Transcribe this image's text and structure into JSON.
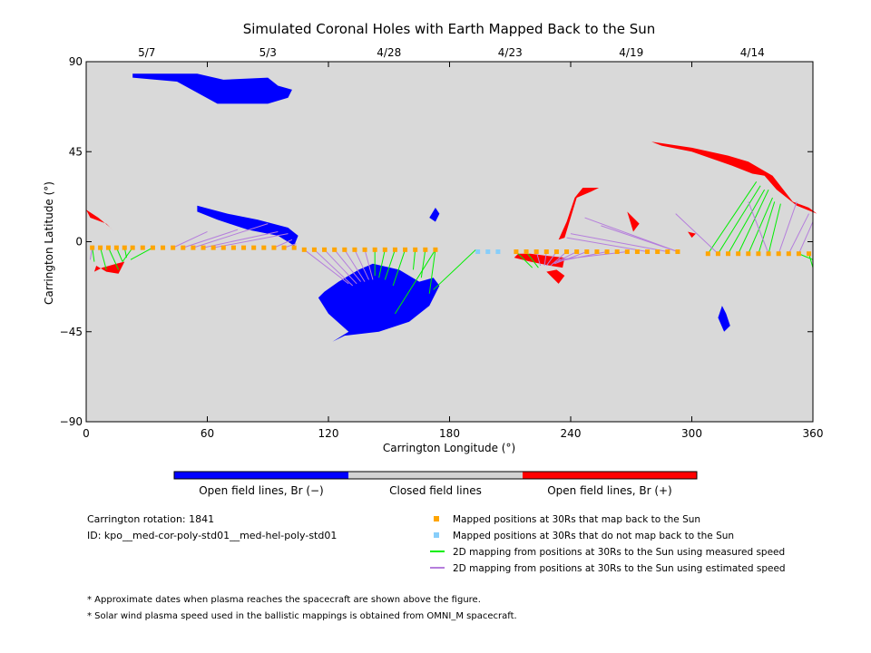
{
  "chart_data": {
    "type": "scatter",
    "title": "Simulated Coronal Holes with Earth Mapped Back to the Sun",
    "xlabel": "Carrington Longitude (°)",
    "ylabel": "Carrington Latitude (°)",
    "xlim": [
      0,
      360
    ],
    "ylim": [
      -90,
      90
    ],
    "x_ticks": [
      0,
      60,
      120,
      180,
      240,
      300,
      360
    ],
    "y_ticks": [
      90,
      45,
      0,
      -45,
      -90
    ],
    "y_tick_labels": [
      "90",
      "45",
      "0",
      "−45",
      "−90"
    ],
    "date_ticks": [
      {
        "label": "5/7",
        "lon": 30
      },
      {
        "label": "5/3",
        "lon": 90
      },
      {
        "label": "4/28",
        "lon": 150
      },
      {
        "label": "4/23",
        "lon": 210
      },
      {
        "label": "4/19",
        "lon": 270
      },
      {
        "label": "4/14",
        "lon": 330
      }
    ],
    "grid": false,
    "colors": {
      "background": "#d9d9d9",
      "open_negative": "#0000ff",
      "open_positive": "#ff0000",
      "closed": "#d3d3d3",
      "mapped": "#ffa500",
      "unmapped": "#87cefa",
      "measured": "#00ee00",
      "estimated": "#b57edc"
    },
    "coronal_holes_negative": [
      [
        [
          23,
          84
        ],
        [
          55,
          84
        ],
        [
          68,
          81
        ],
        [
          90,
          82
        ],
        [
          95,
          78
        ],
        [
          102,
          76
        ],
        [
          100,
          72
        ],
        [
          90,
          69
        ],
        [
          65,
          69
        ],
        [
          45,
          80
        ],
        [
          23,
          82
        ]
      ],
      [
        [
          55,
          18
        ],
        [
          70,
          14
        ],
        [
          85,
          11
        ],
        [
          100,
          7
        ],
        [
          105,
          3
        ],
        [
          103,
          -2
        ],
        [
          95,
          3
        ],
        [
          80,
          6
        ],
        [
          65,
          11
        ],
        [
          55,
          15
        ]
      ],
      [
        [
          115,
          -28
        ],
        [
          120,
          -36
        ],
        [
          130,
          -45
        ],
        [
          122,
          -50
        ],
        [
          128,
          -47
        ],
        [
          145,
          -45
        ],
        [
          160,
          -40
        ],
        [
          170,
          -32
        ],
        [
          175,
          -22
        ],
        [
          172,
          -18
        ],
        [
          165,
          -20
        ],
        [
          155,
          -14
        ],
        [
          142,
          -11
        ],
        [
          135,
          -14
        ],
        [
          125,
          -20
        ],
        [
          118,
          -25
        ]
      ],
      [
        [
          173,
          17
        ],
        [
          175,
          14
        ],
        [
          173,
          10
        ],
        [
          170,
          12
        ]
      ],
      [
        [
          315,
          -32
        ],
        [
          317,
          -36
        ],
        [
          319,
          -42
        ],
        [
          316,
          -45
        ],
        [
          313,
          -38
        ]
      ]
    ],
    "coronal_holes_positive": [
      [
        [
          0,
          16
        ],
        [
          6,
          12
        ],
        [
          12,
          7
        ],
        [
          16,
          3
        ],
        [
          10,
          9
        ],
        [
          2,
          12
        ]
      ],
      [
        [
          5,
          -12
        ],
        [
          10,
          -15
        ],
        [
          16,
          -16
        ],
        [
          19,
          -10
        ],
        [
          15,
          -11
        ],
        [
          8,
          -13
        ],
        [
          4,
          -15
        ]
      ],
      [
        [
          212,
          -8
        ],
        [
          220,
          -10
        ],
        [
          230,
          -12
        ],
        [
          236,
          -13
        ],
        [
          237,
          -8
        ],
        [
          228,
          -7
        ],
        [
          220,
          -6
        ],
        [
          214,
          -6
        ]
      ],
      [
        [
          228,
          -15
        ],
        [
          234,
          -21
        ],
        [
          237,
          -17
        ],
        [
          233,
          -14
        ]
      ],
      [
        [
          234,
          1
        ],
        [
          238,
          10
        ],
        [
          242,
          22
        ],
        [
          246,
          27
        ],
        [
          254,
          27
        ],
        [
          250,
          25
        ],
        [
          243,
          22
        ],
        [
          240,
          12
        ],
        [
          237,
          2
        ]
      ],
      [
        [
          268,
          15
        ],
        [
          274,
          9
        ],
        [
          271,
          5
        ]
      ],
      [
        [
          298,
          5
        ],
        [
          300,
          2
        ],
        [
          302,
          4
        ]
      ],
      [
        [
          280,
          50
        ],
        [
          300,
          47
        ],
        [
          318,
          43
        ],
        [
          328,
          40
        ],
        [
          340,
          33
        ],
        [
          350,
          20
        ],
        [
          358,
          17
        ],
        [
          362,
          14
        ],
        [
          352,
          18
        ],
        [
          342,
          26
        ],
        [
          336,
          33
        ],
        [
          330,
          34
        ],
        [
          320,
          38
        ],
        [
          300,
          45
        ],
        [
          285,
          48
        ]
      ]
    ],
    "mapped_lons": [
      3,
      7,
      11,
      15,
      19,
      23,
      28,
      33,
      38,
      43,
      48,
      53,
      58,
      63,
      68,
      73,
      78,
      83,
      88,
      93,
      98,
      103,
      108,
      113,
      118,
      123,
      128,
      133,
      138,
      143,
      148,
      153,
      158,
      163,
      168,
      173,
      213,
      218,
      223,
      228,
      233,
      238,
      243,
      248,
      253,
      258,
      263,
      268,
      273,
      278,
      283,
      288,
      293,
      308,
      313,
      318,
      323,
      328,
      333,
      338,
      343,
      348,
      353,
      358
    ],
    "mapped_lats": [
      -3,
      -3,
      -3,
      -3,
      -3,
      -3,
      -3,
      -3,
      -3,
      -3,
      -3,
      -3,
      -3,
      -3,
      -3,
      -3,
      -3,
      -3,
      -3,
      -3,
      -3,
      -3,
      -4,
      -4,
      -4,
      -4,
      -4,
      -4,
      -4,
      -4,
      -4,
      -4,
      -4,
      -4,
      -4,
      -4,
      -5,
      -5,
      -5,
      -5,
      -5,
      -5,
      -5,
      -5,
      -5,
      -5,
      -5,
      -5,
      -5,
      -5,
      -5,
      -5,
      -5,
      -6,
      -6,
      -6,
      -6,
      -6,
      -6,
      -6,
      -6,
      -6,
      -6,
      -6
    ],
    "mapped_back": [
      true,
      true,
      true,
      true,
      true,
      true,
      true,
      true,
      true,
      true,
      true,
      true,
      true,
      true,
      true,
      true,
      true,
      true,
      true,
      true,
      true,
      true,
      true,
      true,
      true,
      true,
      true,
      true,
      true,
      true,
      true,
      true,
      true,
      true,
      true,
      true,
      true,
      true,
      true,
      true,
      true,
      true,
      true,
      true,
      true,
      true,
      true,
      true,
      true,
      true,
      true,
      true,
      true,
      true,
      true,
      true,
      true,
      true,
      true,
      true,
      true,
      true,
      true,
      true
    ],
    "unmapped_lons": [
      194,
      199,
      204
    ],
    "unmapped_lats": [
      -5,
      -5,
      -5
    ],
    "mapping_lines": [
      {
        "from": [
          3,
          -3
        ],
        "to": [
          4,
          -10
        ],
        "mode": "measured"
      },
      {
        "from": [
          7,
          -3
        ],
        "to": [
          10,
          -14
        ],
        "mode": "measured"
      },
      {
        "from": [
          11,
          -3
        ],
        "to": [
          16,
          -14
        ],
        "mode": "measured"
      },
      {
        "from": [
          15,
          -3
        ],
        "to": [
          18,
          -10
        ],
        "mode": "measured"
      },
      {
        "from": [
          19,
          -3
        ],
        "to": [
          20,
          -8
        ],
        "mode": "measured"
      },
      {
        "from": [
          3,
          -3
        ],
        "to": [
          2,
          -9
        ],
        "mode": "estimated"
      },
      {
        "from": [
          23,
          -3
        ],
        "to": [
          18,
          -10
        ],
        "mode": "measured"
      },
      {
        "from": [
          33,
          -3
        ],
        "to": [
          22,
          -9
        ],
        "mode": "measured"
      },
      {
        "from": [
          43,
          -3
        ],
        "to": [
          60,
          5
        ],
        "mode": "estimated"
      },
      {
        "from": [
          48,
          -3
        ],
        "to": [
          75,
          6
        ],
        "mode": "estimated"
      },
      {
        "from": [
          53,
          -3
        ],
        "to": [
          90,
          9
        ],
        "mode": "estimated"
      },
      {
        "from": [
          58,
          -3
        ],
        "to": [
          95,
          5
        ],
        "mode": "estimated"
      },
      {
        "from": [
          63,
          -3
        ],
        "to": [
          100,
          4
        ],
        "mode": "estimated"
      },
      {
        "from": [
          93,
          -3
        ],
        "to": [
          102,
          1
        ],
        "mode": "estimated"
      },
      {
        "from": [
          98,
          -3
        ],
        "to": [
          104,
          -1
        ],
        "mode": "estimated"
      },
      {
        "from": [
          108,
          -4
        ],
        "to": [
          130,
          -21
        ],
        "mode": "estimated"
      },
      {
        "from": [
          113,
          -4
        ],
        "to": [
          132,
          -22
        ],
        "mode": "estimated"
      },
      {
        "from": [
          118,
          -4
        ],
        "to": [
          134,
          -21
        ],
        "mode": "estimated"
      },
      {
        "from": [
          123,
          -4
        ],
        "to": [
          136,
          -20
        ],
        "mode": "estimated"
      },
      {
        "from": [
          128,
          -4
        ],
        "to": [
          138,
          -20
        ],
        "mode": "estimated"
      },
      {
        "from": [
          133,
          -4
        ],
        "to": [
          140,
          -19
        ],
        "mode": "estimated"
      },
      {
        "from": [
          138,
          -4
        ],
        "to": [
          142,
          -19
        ],
        "mode": "estimated"
      },
      {
        "from": [
          143,
          -4
        ],
        "to": [
          143,
          -17
        ],
        "mode": "measured"
      },
      {
        "from": [
          148,
          -4
        ],
        "to": [
          145,
          -18
        ],
        "mode": "measured"
      },
      {
        "from": [
          153,
          -4
        ],
        "to": [
          148,
          -19
        ],
        "mode": "measured"
      },
      {
        "from": [
          158,
          -4
        ],
        "to": [
          152,
          -22
        ],
        "mode": "measured"
      },
      {
        "from": [
          163,
          -4
        ],
        "to": [
          162,
          -14
        ],
        "mode": "measured"
      },
      {
        "from": [
          168,
          -4
        ],
        "to": [
          166,
          -18
        ],
        "mode": "measured"
      },
      {
        "from": [
          173,
          -4
        ],
        "to": [
          170,
          -26
        ],
        "mode": "measured"
      },
      {
        "from": [
          173,
          -4
        ],
        "to": [
          153,
          -36
        ],
        "mode": "measured"
      },
      {
        "from": [
          193,
          -4
        ],
        "to": [
          172,
          -24
        ],
        "mode": "measured"
      },
      {
        "from": [
          213,
          -5
        ],
        "to": [
          221,
          -13
        ],
        "mode": "measured"
      },
      {
        "from": [
          218,
          -5
        ],
        "to": [
          224,
          -13
        ],
        "mode": "measured"
      },
      {
        "from": [
          223,
          -5
        ],
        "to": [
          225,
          -12
        ],
        "mode": "estimated"
      },
      {
        "from": [
          228,
          -5
        ],
        "to": [
          227,
          -12
        ],
        "mode": "estimated"
      },
      {
        "from": [
          233,
          -5
        ],
        "to": [
          228,
          -12
        ],
        "mode": "estimated"
      },
      {
        "from": [
          238,
          -5
        ],
        "to": [
          230,
          -12
        ],
        "mode": "estimated"
      },
      {
        "from": [
          243,
          -5
        ],
        "to": [
          231,
          -11
        ],
        "mode": "estimated"
      },
      {
        "from": [
          248,
          -5
        ],
        "to": [
          232,
          -11
        ],
        "mode": "estimated"
      },
      {
        "from": [
          258,
          -5
        ],
        "to": [
          233,
          -10
        ],
        "mode": "estimated"
      },
      {
        "from": [
          268,
          -5
        ],
        "to": [
          234,
          -9
        ],
        "mode": "estimated"
      },
      {
        "from": [
          278,
          -5
        ],
        "to": [
          238,
          2
        ],
        "mode": "estimated"
      },
      {
        "from": [
          288,
          -5
        ],
        "to": [
          240,
          4
        ],
        "mode": "estimated"
      },
      {
        "from": [
          293,
          -5
        ],
        "to": [
          247,
          12
        ],
        "mode": "estimated"
      },
      {
        "from": [
          293,
          -5
        ],
        "to": [
          255,
          8
        ],
        "mode": "estimated"
      },
      {
        "from": [
          308,
          -6
        ],
        "to": [
          332,
          30
        ],
        "mode": "measured"
      },
      {
        "from": [
          313,
          -6
        ],
        "to": [
          334,
          28
        ],
        "mode": "measured"
      },
      {
        "from": [
          318,
          -6
        ],
        "to": [
          336,
          26
        ],
        "mode": "measured"
      },
      {
        "from": [
          323,
          -6
        ],
        "to": [
          338,
          26
        ],
        "mode": "measured"
      },
      {
        "from": [
          328,
          -6
        ],
        "to": [
          340,
          22
        ],
        "mode": "measured"
      },
      {
        "from": [
          333,
          -6
        ],
        "to": [
          341,
          20
        ],
        "mode": "measured"
      },
      {
        "from": [
          338,
          -6
        ],
        "to": [
          344,
          19
        ],
        "mode": "measured"
      },
      {
        "from": [
          313,
          -6
        ],
        "to": [
          292,
          14
        ],
        "mode": "estimated"
      },
      {
        "from": [
          343,
          -6
        ],
        "to": [
          352,
          20
        ],
        "mode": "estimated"
      },
      {
        "from": [
          348,
          -6
        ],
        "to": [
          358,
          14
        ],
        "mode": "estimated"
      },
      {
        "from": [
          353,
          -6
        ],
        "to": [
          360,
          10
        ],
        "mode": "estimated"
      },
      {
        "from": [
          338,
          -6
        ],
        "to": [
          328,
          20
        ],
        "mode": "estimated"
      },
      {
        "from": [
          358,
          -6
        ],
        "to": [
          360,
          -13
        ],
        "mode": "measured"
      },
      {
        "from": [
          353,
          -6
        ],
        "to": [
          360,
          -9
        ],
        "mode": "measured"
      }
    ],
    "colorbar": {
      "segments": [
        {
          "label": "Open field lines, Br (−)",
          "color": "#0000ff"
        },
        {
          "label": "Closed field lines",
          "color": "#d3d3d3"
        },
        {
          "label": "Open field lines, Br (+)",
          "color": "#ff0000"
        }
      ]
    },
    "legend": [
      {
        "label": "Mapped positions at 30Rs that map back to the Sun",
        "kind": "square",
        "color": "#ffa500"
      },
      {
        "label": "Mapped positions at 30Rs that do not map back to the Sun",
        "kind": "square",
        "color": "#87cefa"
      },
      {
        "label": "2D mapping from positions at 30Rs to the Sun using measured speed",
        "kind": "line",
        "color": "#00ee00"
      },
      {
        "label": "2D mapping from positions at 30Rs to the Sun using estimated speed",
        "kind": "line",
        "color": "#b57edc"
      }
    ],
    "legend_position": "bottom-right"
  },
  "info": {
    "rotation": "Carrington rotation: 1841",
    "id": "ID: kpo__med-cor-poly-std01__med-hel-poly-std01"
  },
  "notes": [
    "* Approximate dates when plasma reaches the spacecraft are shown above the figure.",
    "* Solar wind plasma speed used in the ballistic mappings is obtained from OMNI_M spacecraft."
  ]
}
